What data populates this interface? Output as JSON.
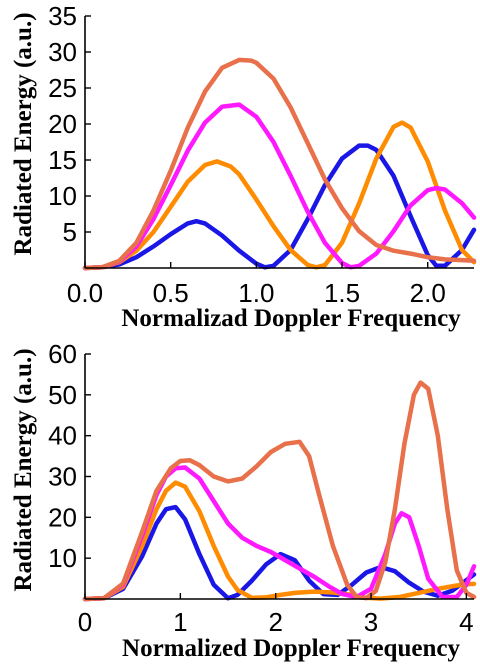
{
  "chart_data": [
    {
      "type": "line",
      "xlabel": "Normalizad Doppler Frequency",
      "ylabel": "Radiated Energy (a.u.)",
      "xlim": [
        0,
        2.27
      ],
      "ylim": [
        0,
        35
      ],
      "xticks": [
        "0.0",
        "0.5",
        "1.0",
        "1.5",
        "2.0"
      ],
      "yticks": [
        "5",
        "10",
        "15",
        "20",
        "25",
        "30",
        "35"
      ],
      "grid": false,
      "series": [
        {
          "color": "#1a17e6",
          "x": [
            0,
            0.1,
            0.2,
            0.3,
            0.4,
            0.5,
            0.6,
            0.65,
            0.7,
            0.8,
            0.9,
            1.0,
            1.05,
            1.1,
            1.2,
            1.3,
            1.4,
            1.5,
            1.6,
            1.65,
            1.7,
            1.8,
            1.9,
            2.0,
            2.05,
            2.1,
            2.2,
            2.27
          ],
          "y": [
            0,
            0.1,
            0.5,
            1.5,
            3.0,
            4.7,
            6.2,
            6.5,
            6.2,
            4.5,
            2.4,
            0.6,
            0.1,
            0.3,
            2.5,
            6.8,
            11.5,
            15.2,
            17.0,
            17.0,
            16.4,
            12.8,
            7.2,
            1.8,
            0.3,
            0.3,
            2.5,
            5.3
          ]
        },
        {
          "color": "#ff8c00",
          "x": [
            0,
            0.1,
            0.2,
            0.3,
            0.4,
            0.5,
            0.6,
            0.7,
            0.77,
            0.85,
            0.9,
            1.0,
            1.1,
            1.2,
            1.3,
            1.35,
            1.4,
            1.5,
            1.6,
            1.7,
            1.8,
            1.85,
            1.9,
            2.0,
            2.1,
            2.2,
            2.27
          ],
          "y": [
            0,
            0.1,
            0.8,
            2.4,
            5.0,
            8.5,
            12.0,
            14.3,
            14.8,
            14.1,
            13.0,
            9.5,
            5.8,
            2.5,
            0.4,
            0.1,
            0.4,
            3.5,
            9.0,
            15.2,
            19.6,
            20.2,
            19.5,
            14.8,
            8.0,
            2.5,
            0.8
          ]
        },
        {
          "color": "#ff19ff",
          "x": [
            0,
            0.1,
            0.2,
            0.3,
            0.4,
            0.5,
            0.6,
            0.7,
            0.8,
            0.9,
            1.0,
            1.1,
            1.2,
            1.3,
            1.4,
            1.5,
            1.55,
            1.6,
            1.7,
            1.8,
            1.9,
            2.0,
            2.05,
            2.1,
            2.2,
            2.27
          ],
          "y": [
            0,
            0.1,
            0.9,
            3.0,
            6.8,
            11.5,
            16.3,
            20.2,
            22.4,
            22.7,
            21.0,
            17.5,
            12.8,
            7.8,
            3.5,
            0.7,
            0.1,
            0.3,
            2.0,
            5.1,
            8.7,
            10.8,
            11.1,
            10.9,
            9.0,
            7.0
          ]
        },
        {
          "color": "#e8704a",
          "x": [
            0,
            0.1,
            0.2,
            0.3,
            0.4,
            0.5,
            0.6,
            0.7,
            0.8,
            0.9,
            0.97,
            1.0,
            1.1,
            1.2,
            1.3,
            1.4,
            1.5,
            1.6,
            1.7,
            1.8,
            1.9,
            2.0,
            2.1,
            2.2,
            2.27
          ],
          "y": [
            0,
            0.1,
            1.0,
            3.5,
            8.0,
            13.5,
            19.5,
            24.5,
            27.8,
            28.9,
            28.8,
            28.5,
            26.3,
            22.3,
            17.3,
            12.3,
            8.3,
            5.1,
            3.2,
            2.4,
            2.0,
            1.5,
            1.2,
            1.1,
            1.0
          ]
        }
      ]
    },
    {
      "type": "line",
      "xlabel": "Normalized Doppler Frequency",
      "ylabel": "Radiated Energy (a.u.)",
      "xlim": [
        0,
        4.08
      ],
      "ylim": [
        0,
        60
      ],
      "xticks": [
        "0",
        "1",
        "2",
        "3",
        "4"
      ],
      "yticks": [
        "10",
        "20",
        "30",
        "40",
        "50",
        "60"
      ],
      "grid": false,
      "series": [
        {
          "color": "#1a17e6",
          "x": [
            0,
            0.2,
            0.4,
            0.6,
            0.75,
            0.85,
            0.95,
            1.05,
            1.2,
            1.35,
            1.5,
            1.6,
            1.75,
            1.9,
            2.05,
            2.2,
            2.35,
            2.5,
            2.65,
            2.8,
            2.95,
            3.1,
            3.25,
            3.4,
            3.55,
            3.7,
            3.85,
            4.0,
            4.08
          ],
          "y": [
            0,
            0.2,
            2.5,
            10.5,
            18.5,
            22.0,
            22.5,
            19.5,
            11.0,
            3.5,
            0.2,
            1.0,
            4.5,
            8.5,
            11.0,
            9.5,
            4.5,
            1.2,
            1.0,
            3.5,
            6.5,
            7.8,
            6.8,
            4.0,
            1.8,
            0.8,
            2.0,
            4.6,
            6.0
          ]
        },
        {
          "color": "#ff8c00",
          "x": [
            0,
            0.2,
            0.4,
            0.6,
            0.75,
            0.85,
            0.95,
            1.05,
            1.2,
            1.35,
            1.5,
            1.6,
            1.75,
            1.9,
            2.05,
            2.2,
            2.4,
            2.6,
            2.8,
            2.95,
            3.1,
            3.3,
            3.5,
            3.7,
            3.9,
            4.0,
            4.08
          ],
          "y": [
            0,
            0.2,
            3.0,
            13.0,
            22.0,
            26.5,
            28.5,
            27.5,
            21.5,
            13.0,
            5.5,
            2.2,
            0.3,
            0.4,
            1.0,
            1.5,
            1.8,
            1.6,
            1.0,
            0.3,
            0.1,
            0.5,
            1.5,
            2.5,
            3.3,
            3.6,
            3.7
          ]
        },
        {
          "color": "#ff19ff",
          "x": [
            0,
            0.2,
            0.4,
            0.6,
            0.75,
            0.85,
            0.95,
            1.05,
            1.2,
            1.35,
            1.5,
            1.65,
            1.8,
            1.95,
            2.1,
            2.25,
            2.4,
            2.55,
            2.7,
            2.85,
            3.0,
            3.15,
            3.25,
            3.32,
            3.4,
            3.5,
            3.6,
            3.75,
            3.9,
            4.0,
            4.08
          ],
          "y": [
            0,
            0.2,
            3.5,
            15.5,
            25.5,
            30.0,
            32.0,
            32.2,
            29.5,
            24.0,
            18.5,
            15.0,
            13.0,
            11.5,
            9.5,
            7.5,
            5.5,
            3.2,
            1.2,
            0.5,
            2.5,
            11.0,
            18.5,
            21.0,
            20.0,
            13.0,
            5.0,
            0.5,
            0.5,
            3.5,
            8.0
          ]
        },
        {
          "color": "#e8704a",
          "x": [
            0,
            0.2,
            0.4,
            0.6,
            0.75,
            0.9,
            1.0,
            1.1,
            1.2,
            1.35,
            1.5,
            1.65,
            1.8,
            1.95,
            2.1,
            2.25,
            2.35,
            2.45,
            2.6,
            2.75,
            2.85,
            2.95,
            3.05,
            3.15,
            3.25,
            3.35,
            3.45,
            3.52,
            3.6,
            3.7,
            3.8,
            3.9,
            4.0,
            4.08
          ],
          "y": [
            0,
            0.2,
            3.8,
            16.5,
            26.5,
            32.0,
            33.8,
            34.0,
            32.8,
            30.0,
            28.8,
            29.5,
            32.5,
            36.0,
            38.0,
            38.5,
            35.0,
            26.0,
            13.0,
            3.5,
            0.5,
            0.2,
            2.0,
            9.0,
            22.0,
            38.0,
            50.0,
            53.0,
            51.5,
            40.0,
            22.0,
            7.0,
            1.5,
            0.5
          ]
        }
      ]
    }
  ]
}
